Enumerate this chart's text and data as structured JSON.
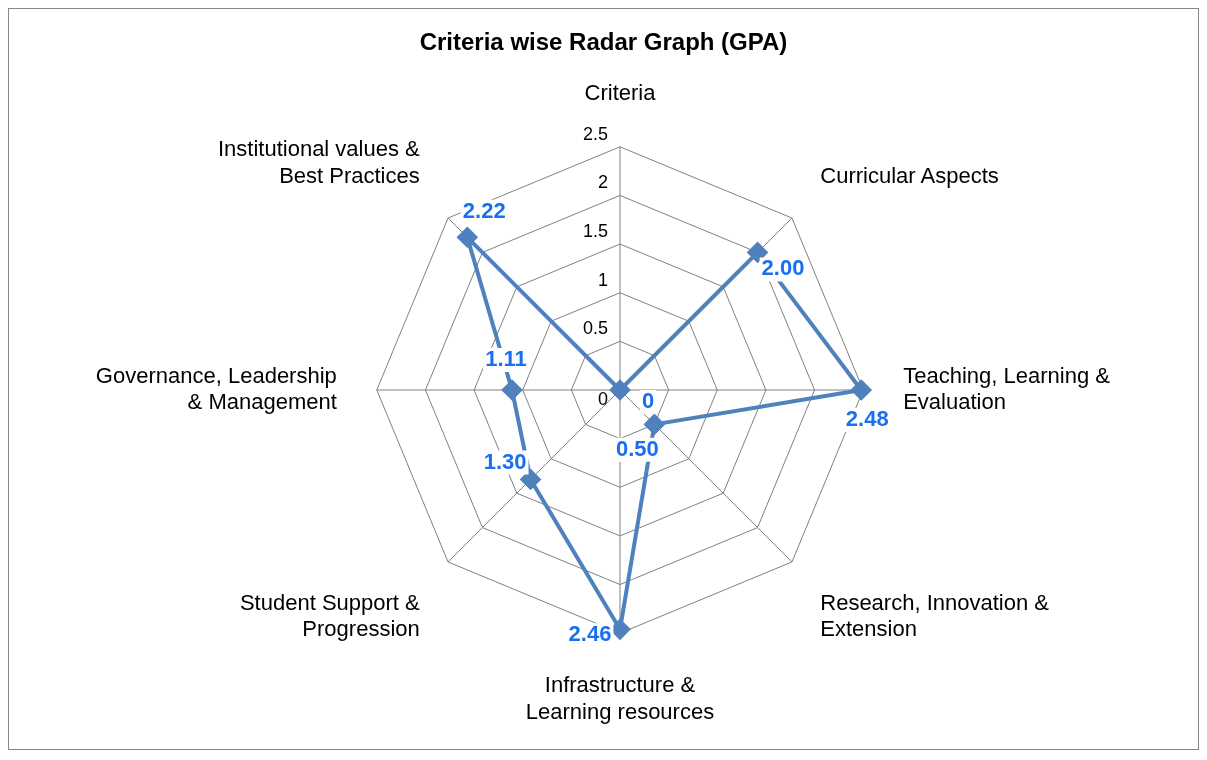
{
  "chart_data": {
    "type": "radar",
    "title": "Criteria wise Radar Graph (GPA)",
    "categories": [
      "Criteria",
      "Curricular Aspects",
      "Teaching, Learning & Evaluation",
      "Research, Innovation & Extension",
      "Infrastructure & Learning resources",
      "Student Support & Progression",
      "Governance, Leadership & Management",
      "Institutional values & Best Practices"
    ],
    "series": [
      {
        "color": "#4f81bd",
        "values": [
          0,
          2.0,
          2.48,
          0.5,
          2.46,
          1.3,
          1.11,
          2.22
        ],
        "value_labels": [
          "0",
          "2.00",
          "2.48",
          "0.50",
          "2.46",
          "1.30",
          "1.11",
          "2.22"
        ]
      }
    ],
    "ylim": [
      0,
      2.5
    ],
    "yticks": [
      0,
      0.5,
      1,
      1.5,
      2,
      2.5
    ],
    "grid": true,
    "legend": false,
    "marker": "diamond",
    "line_style": "solid"
  }
}
